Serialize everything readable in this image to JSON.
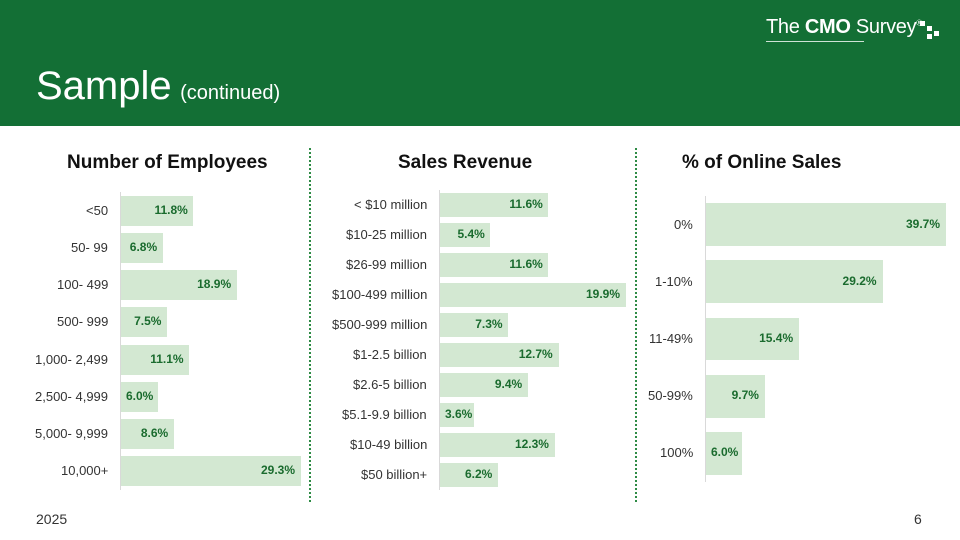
{
  "header": {
    "title": "Sample",
    "subtitle": "(continued)",
    "logo_prefix": "The ",
    "logo_bold": "CMO",
    "logo_suffix": " Survey",
    "logo_mark": "®"
  },
  "footer": {
    "year": "2025",
    "page": "6"
  },
  "colors": {
    "header_bg": "#136f35",
    "bar_fill": "#d3e8d2",
    "value_text": "#1a6b2e",
    "divider": "#2e8b45"
  },
  "chart_data": [
    {
      "type": "bar",
      "orientation": "horizontal",
      "title": "Number of Employees",
      "categories": [
        "<50",
        "50- 99",
        "100- 499",
        "500- 999",
        "1,000- 2,499",
        "2,500- 4,999",
        "5,000- 9,999",
        "10,000+"
      ],
      "values": [
        11.8,
        6.8,
        18.9,
        7.5,
        11.1,
        6.0,
        8.6,
        29.3
      ],
      "labels": [
        "11.8%",
        "6.8%",
        "18.9%",
        "7.5%",
        "11.1%",
        "6.0%",
        "8.6%",
        "29.3%"
      ],
      "xlim": [
        0,
        29.3
      ],
      "grid": false
    },
    {
      "type": "bar",
      "orientation": "horizontal",
      "title": "Sales Revenue",
      "categories": [
        "< $10 million",
        "$10-25 million",
        "$26-99 million",
        "$100-499 million",
        "$500-999 million",
        "$1-2.5 billion",
        "$2.6-5 billion",
        "$5.1-9.9 billion",
        "$10-49 billion",
        "$50 billion+"
      ],
      "values": [
        11.6,
        5.4,
        11.6,
        19.9,
        7.3,
        12.7,
        9.4,
        3.6,
        12.3,
        6.2
      ],
      "labels": [
        "11.6%",
        "5.4%",
        "11.6%",
        "19.9%",
        "7.3%",
        "12.7%",
        "9.4%",
        "3.6%",
        "12.3%",
        "6.2%"
      ],
      "xlim": [
        0,
        19.9
      ],
      "grid": false
    },
    {
      "type": "bar",
      "orientation": "horizontal",
      "title": "% of Online Sales",
      "categories": [
        "0%",
        "1-10%",
        "11-49%",
        "50-99%",
        "100%"
      ],
      "values": [
        39.7,
        29.2,
        15.4,
        9.7,
        6.0
      ],
      "labels": [
        "39.7%",
        "29.2%",
        "15.4%",
        "9.7%",
        "6.0%"
      ],
      "xlim": [
        0,
        39.7
      ],
      "grid": false
    }
  ]
}
